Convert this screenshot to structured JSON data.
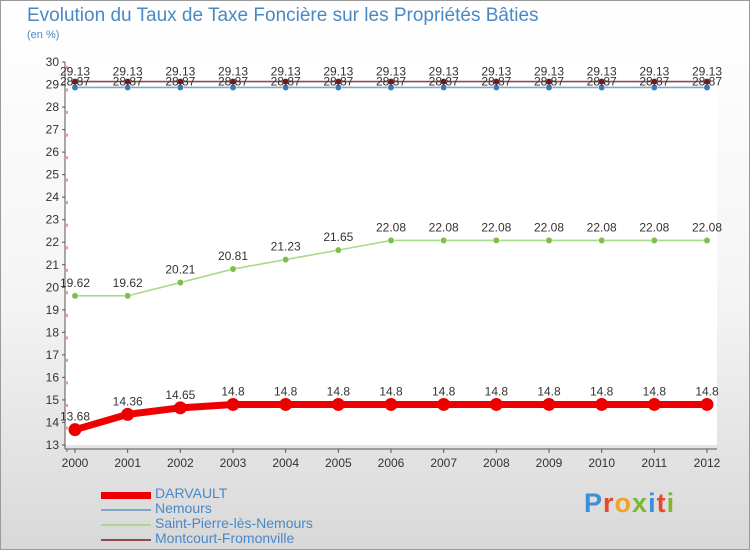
{
  "title": "Evolution du Taux de Taxe Foncière sur les Propriétés Bâties",
  "subtitle": "(en %)",
  "logo": {
    "text": "Proxiti",
    "letters": [
      {
        "ch": "P",
        "color": "#3b8fd6"
      },
      {
        "ch": "r",
        "color": "#e5482e"
      },
      {
        "ch": "o",
        "color": "#f2a31f"
      },
      {
        "ch": "x",
        "color": "#7cb82f"
      },
      {
        "ch": "i",
        "color": "#3b8fd6"
      },
      {
        "ch": "t",
        "color": "#e5482e"
      },
      {
        "ch": "i",
        "color": "#7cb82f"
      }
    ]
  },
  "chart_data": {
    "type": "line",
    "title": "Evolution du Taux de Taxe Foncière sur les Propriétés Bâties",
    "ylabel": "(en %)",
    "ylim": [
      13,
      30
    ],
    "yticks": [
      13,
      14,
      15,
      16,
      17,
      18,
      19,
      20,
      21,
      22,
      23,
      24,
      25,
      26,
      27,
      28,
      29,
      30
    ],
    "categories": [
      "2000",
      "2001",
      "2002",
      "2003",
      "2004",
      "2005",
      "2006",
      "2007",
      "2008",
      "2009",
      "2010",
      "2011",
      "2012"
    ],
    "series": [
      {
        "name": "DARVAULT",
        "color": "#ee0000",
        "marker": "#ee0000",
        "values": [
          13.68,
          14.36,
          14.65,
          14.8,
          14.8,
          14.8,
          14.8,
          14.8,
          14.8,
          14.8,
          14.8,
          14.8,
          14.8
        ],
        "labels": [
          "13.68",
          "14.36",
          "14.65",
          "14.8",
          "14.8",
          "14.8",
          "14.8",
          "14.8",
          "14.8",
          "14.8",
          "14.8",
          "14.8",
          "14.8"
        ]
      },
      {
        "name": "Nemours",
        "color": "#7ea6c8",
        "marker": "#3a7ab8",
        "values": [
          28.87,
          28.87,
          28.87,
          28.87,
          28.87,
          28.87,
          28.87,
          28.87,
          28.87,
          28.87,
          28.87,
          28.87,
          28.87
        ],
        "labels": [
          "28.87",
          "28.87",
          "28.87",
          "28.87",
          "28.87",
          "28.87",
          "28.87",
          "28.87",
          "28.87",
          "28.87",
          "28.87",
          "28.87",
          "28.87"
        ]
      },
      {
        "name": "Saint-Pierre-lès-Nemours",
        "color": "#a9d98a",
        "marker": "#7cc04a",
        "values": [
          19.62,
          19.62,
          20.21,
          20.81,
          21.23,
          21.65,
          22.08,
          22.08,
          22.08,
          22.08,
          22.08,
          22.08,
          22.08
        ],
        "labels": [
          "19.62",
          "19.62",
          "20.21",
          "20.81",
          "21.23",
          "21.65",
          "22.08",
          "22.08",
          "22.08",
          "22.08",
          "22.08",
          "22.08",
          "22.08"
        ]
      },
      {
        "name": "Montcourt-Fromonville",
        "color": "#8f4a50",
        "marker": "#6b1a22",
        "values": [
          29.13,
          29.13,
          29.13,
          29.13,
          29.13,
          29.13,
          29.13,
          29.13,
          29.13,
          29.13,
          29.13,
          29.13,
          29.13
        ],
        "labels": [
          "29.13",
          "29.13",
          "29.13",
          "29.13",
          "29.13",
          "29.13",
          "29.13",
          "29.13",
          "29.13",
          "29.13",
          "29.13",
          "29.13",
          "29.13"
        ]
      }
    ]
  }
}
